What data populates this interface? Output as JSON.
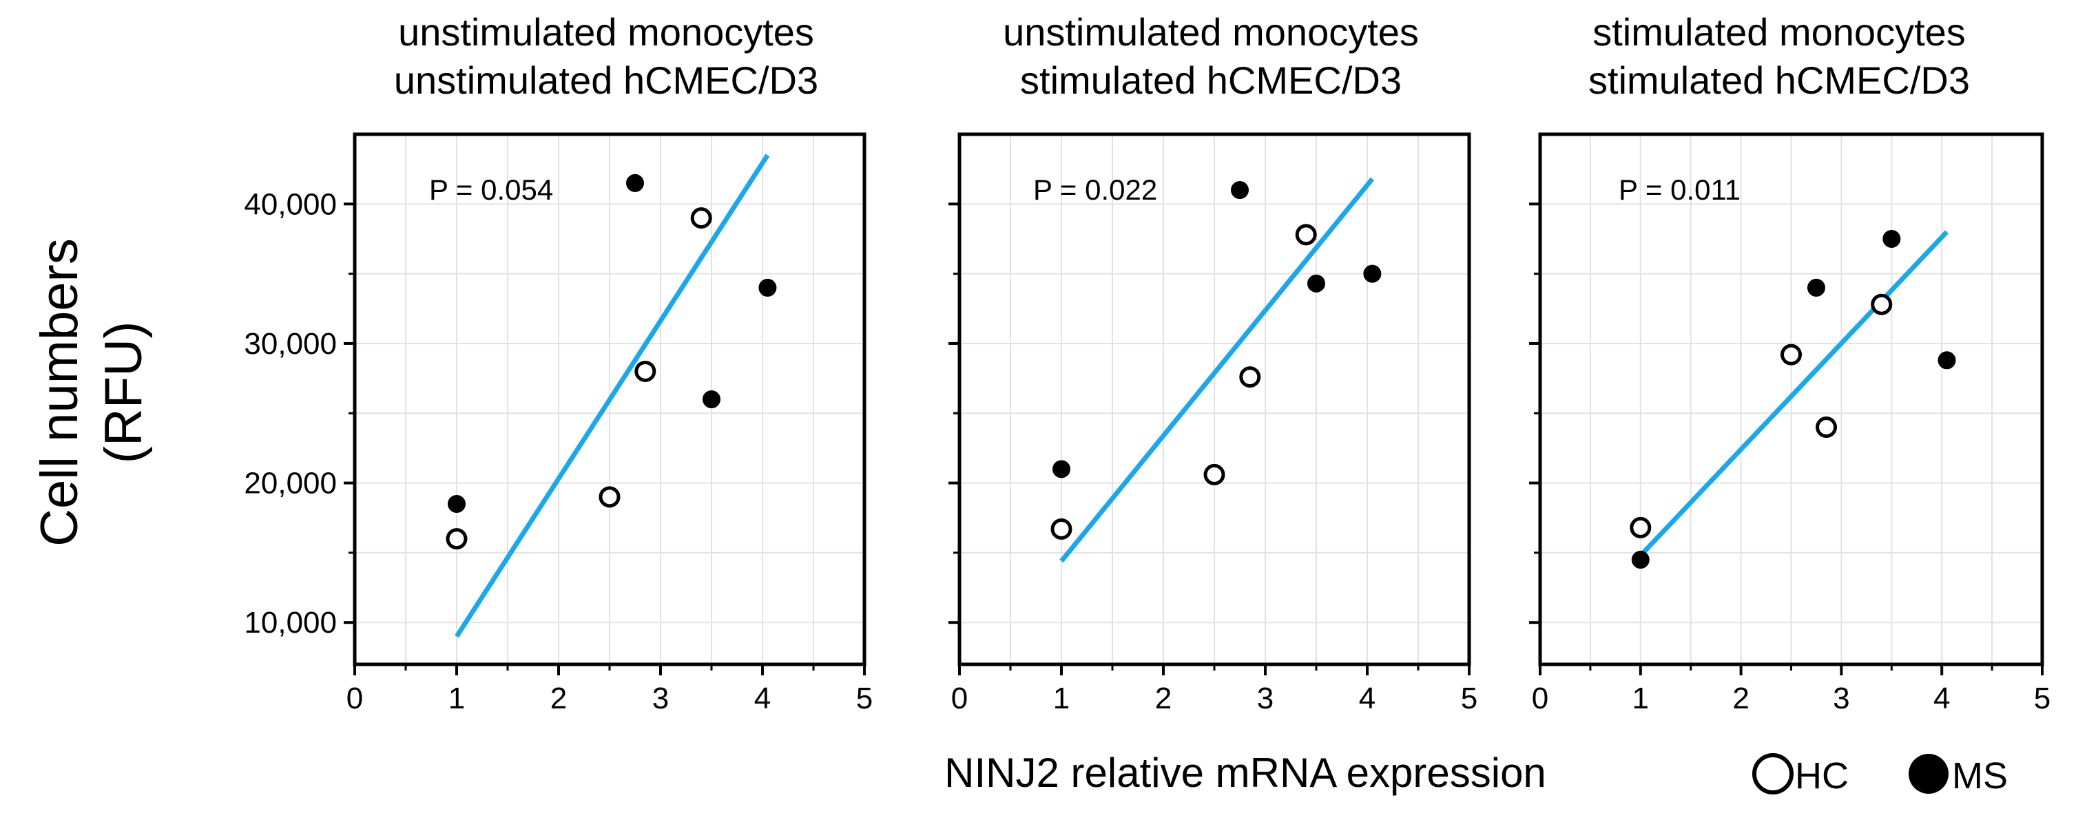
{
  "figure": {
    "ylabel_line1": "Cell numbers",
    "ylabel_line2": "(RFU)",
    "xlabel": "NINJ2 relative mRNA expression",
    "legend": {
      "hc_label": "HC",
      "ms_label": "MS"
    },
    "colors": {
      "fit_line": "#1AA7EC",
      "axis": "#000000",
      "grid": "#E2E2E2",
      "ms_fill": "#000000",
      "hc_fill": "#FFFFFF"
    }
  },
  "chart_data": [
    {
      "type": "scatter",
      "title_line1": "unstimulated monocytes",
      "title_line2": "unstimulated hCMEC/D3",
      "annotation": "P = 0.054",
      "xlim": [
        0,
        5
      ],
      "ylim": [
        7000,
        45000
      ],
      "xticks": [
        0,
        1,
        2,
        3,
        4,
        5
      ],
      "yticks": [
        10000,
        20000,
        30000,
        40000
      ],
      "ytick_labels": [
        "10,000",
        "20,000",
        "30,000",
        "40,000"
      ],
      "series": [
        {
          "name": "HC",
          "x": [
            1.0,
            2.5,
            2.85,
            3.4
          ],
          "y": [
            16000,
            19000,
            28000,
            39000
          ]
        },
        {
          "name": "MS",
          "x": [
            1.0,
            2.75,
            3.5,
            4.05
          ],
          "y": [
            18500,
            41500,
            26000,
            34000
          ]
        }
      ],
      "fit": {
        "x": [
          1.0,
          4.05
        ],
        "y": [
          9000,
          43500
        ]
      }
    },
    {
      "type": "scatter",
      "title_line1": "unstimulated monocytes",
      "title_line2": "stimulated hCMEC/D3",
      "annotation": "P = 0.022",
      "xlim": [
        0,
        5
      ],
      "ylim": [
        7000,
        45000
      ],
      "xticks": [
        0,
        1,
        2,
        3,
        4,
        5
      ],
      "yticks": [
        10000,
        20000,
        30000,
        40000
      ],
      "series": [
        {
          "name": "HC",
          "x": [
            1.0,
            2.5,
            2.85,
            3.4
          ],
          "y": [
            16700,
            20600,
            27600,
            37800
          ]
        },
        {
          "name": "MS",
          "x": [
            1.0,
            2.75,
            3.5,
            4.05
          ],
          "y": [
            21000,
            41000,
            34300,
            35000
          ]
        }
      ],
      "fit": {
        "x": [
          1.0,
          4.05
        ],
        "y": [
          14400,
          41800
        ]
      }
    },
    {
      "type": "scatter",
      "title_line1": "stimulated monocytes",
      "title_line2": "stimulated hCMEC/D3",
      "annotation": "P = 0.011",
      "xlim": [
        0,
        5
      ],
      "ylim": [
        7000,
        45000
      ],
      "xticks": [
        0,
        1,
        2,
        3,
        4,
        5
      ],
      "yticks": [
        10000,
        20000,
        30000,
        40000
      ],
      "series": [
        {
          "name": "HC",
          "x": [
            1.0,
            2.5,
            2.85,
            3.4
          ],
          "y": [
            16800,
            29200,
            24000,
            32800
          ]
        },
        {
          "name": "MS",
          "x": [
            1.0,
            2.75,
            3.5,
            4.05
          ],
          "y": [
            14500,
            34000,
            37500,
            28800
          ]
        }
      ],
      "fit": {
        "x": [
          1.0,
          4.05
        ],
        "y": [
          14800,
          38000
        ]
      }
    }
  ]
}
